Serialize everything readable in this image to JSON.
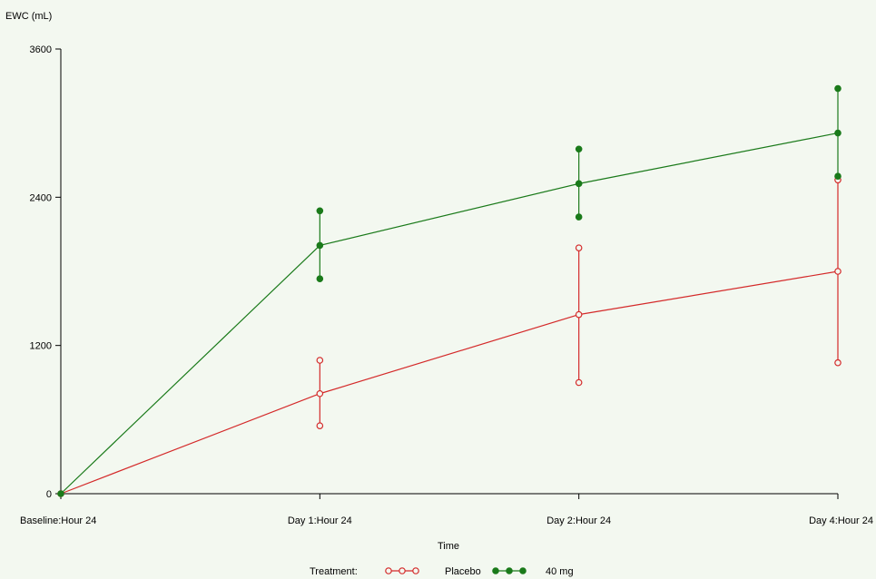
{
  "chart_data": {
    "type": "line",
    "title": "",
    "xlabel": "Time",
    "ylabel": "EWC (mL)",
    "ylim": [
      0,
      3600
    ],
    "yticks": [
      0,
      1200,
      2400,
      3600
    ],
    "categories": [
      "Baseline:Hour 24",
      "Day 1:Hour 24",
      "Day 2:Hour 24",
      "Day 4:Hour 24"
    ],
    "grid": false,
    "legend": {
      "title": "Treatment:",
      "position": "bottom"
    },
    "series": [
      {
        "name": "Placebo",
        "color": "#d42a2a",
        "marker": "open-circle",
        "values": [
          0,
          810,
          1450,
          1800
        ],
        "lower": [
          0,
          550,
          900,
          1060
        ],
        "upper": [
          0,
          1080,
          1990,
          2540
        ]
      },
      {
        "name": "40 mg",
        "color": "#1a7a1a",
        "marker": "filled-circle",
        "values": [
          0,
          2010,
          2510,
          2920
        ],
        "lower": [
          0,
          1740,
          2240,
          2570
        ],
        "upper": [
          0,
          2290,
          2790,
          3280
        ]
      }
    ]
  }
}
